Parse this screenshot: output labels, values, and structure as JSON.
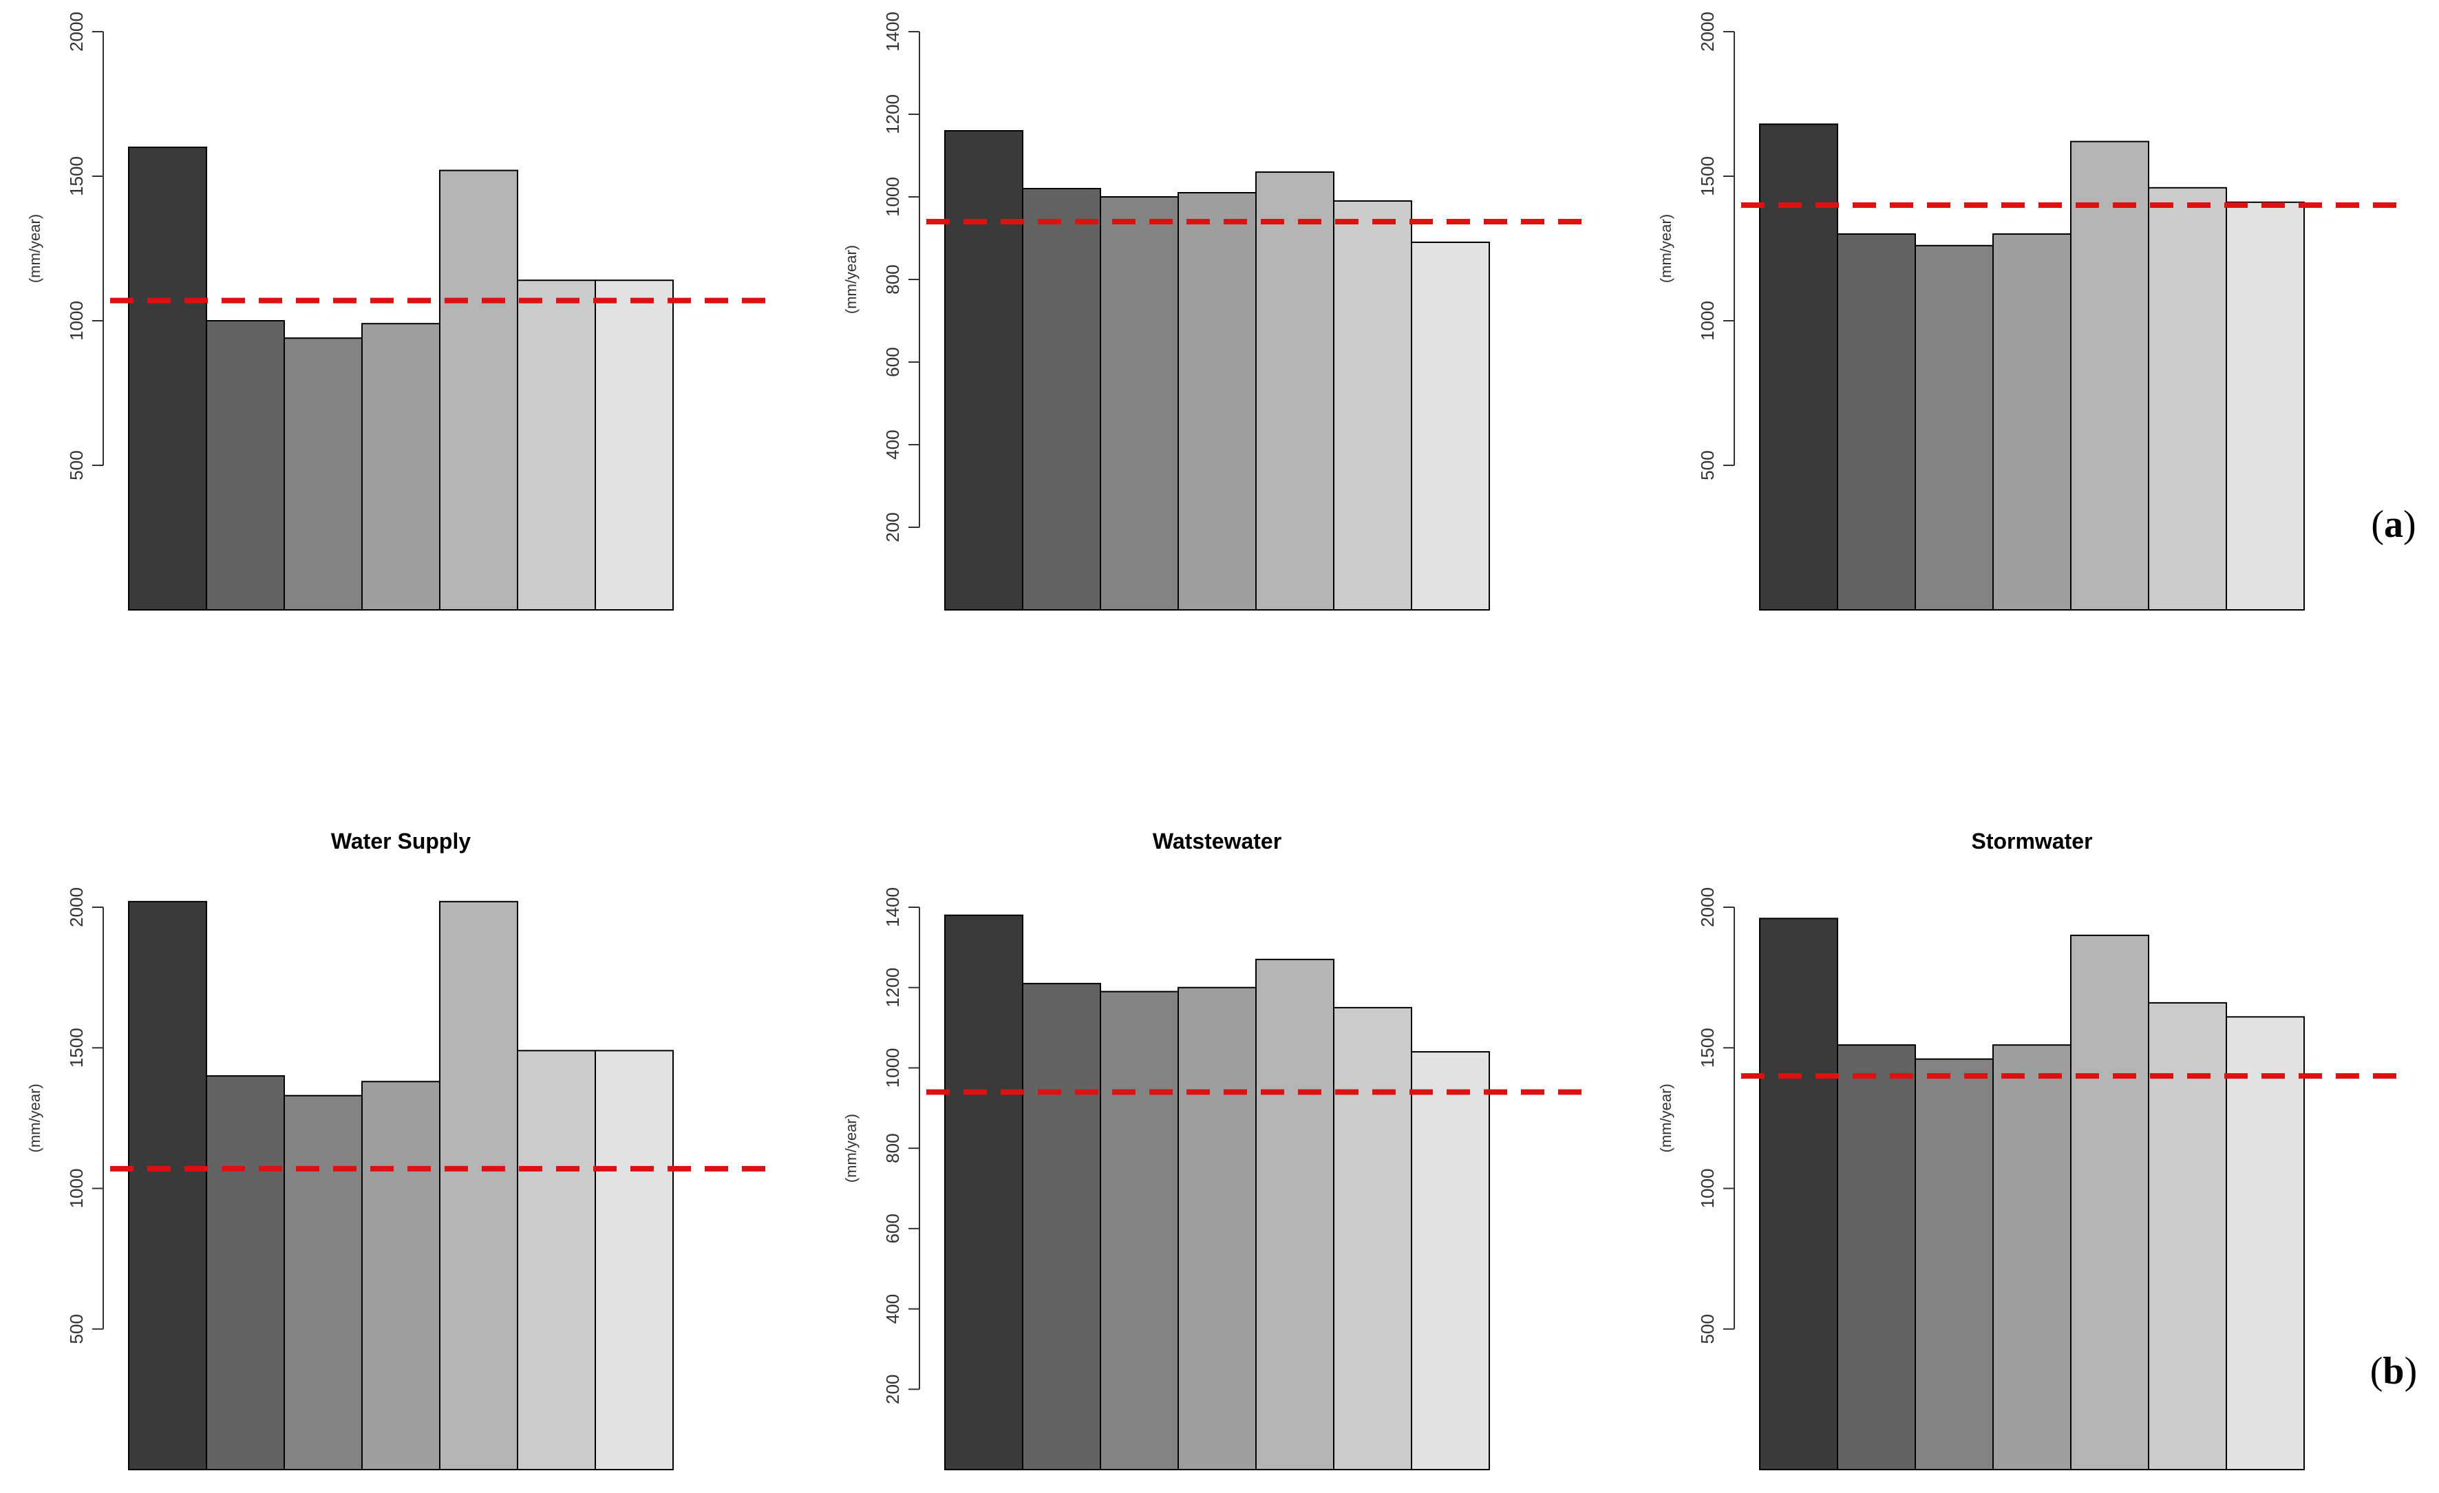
{
  "figure": {
    "panel_labels": [
      {
        "open": "(",
        "letter": "a",
        "close": ")"
      },
      {
        "open": "(",
        "letter": "b",
        "close": ")"
      }
    ]
  },
  "colors": {
    "bars": [
      "#3a3a3a",
      "#636363",
      "#838383",
      "#9e9e9e",
      "#b4b4b4",
      "#cbcbcb",
      "#e2e2e2"
    ],
    "bar_stroke": "#000000",
    "reference_line": "#dd1111",
    "axis": "#333333"
  },
  "chart_data": [
    {
      "type": "bar",
      "row": "a",
      "title": "",
      "xlabel": "",
      "ylabel": "(mm/year)",
      "ylim": [
        0,
        2000
      ],
      "ticks": [
        500,
        1000,
        1500,
        2000
      ],
      "values": [
        1600,
        1000,
        940,
        990,
        1520,
        1140,
        1140
      ],
      "reference": 1070
    },
    {
      "type": "bar",
      "row": "a",
      "title": "",
      "xlabel": "",
      "ylabel": "(mm/year)",
      "ylim": [
        0,
        1400
      ],
      "ticks": [
        200,
        400,
        600,
        800,
        1000,
        1200,
        1400
      ],
      "values": [
        1160,
        1020,
        1000,
        1010,
        1060,
        990,
        890
      ],
      "reference": 940
    },
    {
      "type": "bar",
      "row": "a",
      "title": "",
      "xlabel": "",
      "ylabel": "(mm/year)",
      "ylim": [
        0,
        2000
      ],
      "ticks": [
        500,
        1000,
        1500,
        2000
      ],
      "values": [
        1680,
        1300,
        1260,
        1300,
        1620,
        1460,
        1410
      ],
      "reference": 1400
    },
    {
      "type": "bar",
      "row": "b",
      "title": "Water Supply",
      "xlabel": "",
      "ylabel": "(mm/year)",
      "ylim": [
        0,
        2000
      ],
      "ticks": [
        500,
        1000,
        1500,
        2000
      ],
      "values": [
        2020,
        1400,
        1330,
        1380,
        2020,
        1490,
        1490
      ],
      "reference": 1070
    },
    {
      "type": "bar",
      "row": "b",
      "title": "Watstewater",
      "xlabel": "",
      "ylabel": "(mm/year)",
      "ylim": [
        0,
        1400
      ],
      "ticks": [
        200,
        400,
        600,
        800,
        1000,
        1200,
        1400
      ],
      "values": [
        1380,
        1210,
        1190,
        1200,
        1270,
        1150,
        1040
      ],
      "reference": 940
    },
    {
      "type": "bar",
      "row": "b",
      "title": "Stormwater",
      "xlabel": "",
      "ylabel": "(mm/year)",
      "ylim": [
        0,
        2000
      ],
      "ticks": [
        500,
        1000,
        1500,
        2000
      ],
      "values": [
        1960,
        1510,
        1460,
        1510,
        1900,
        1660,
        1610
      ],
      "reference": 1400
    }
  ]
}
